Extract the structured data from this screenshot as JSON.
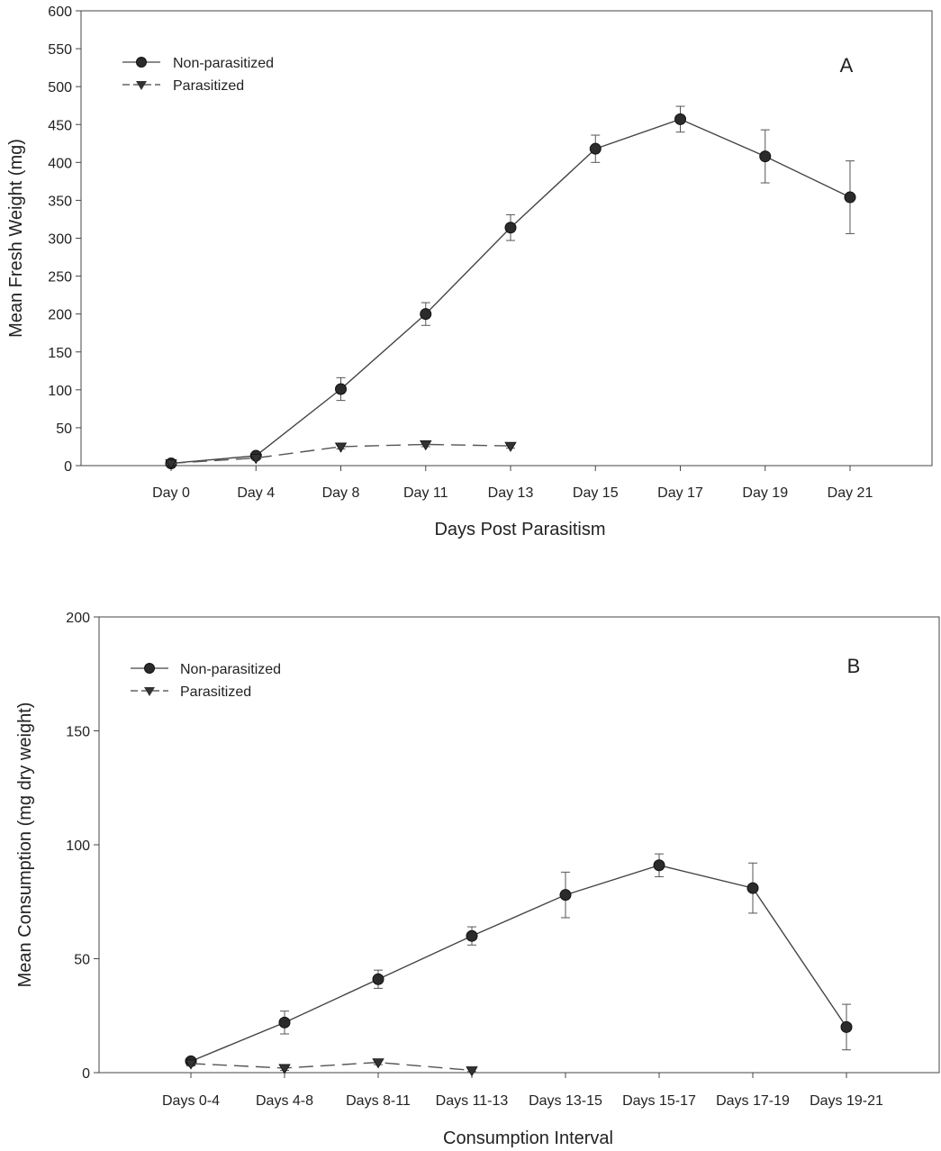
{
  "chart_data": [
    {
      "type": "line",
      "panel_label": "A",
      "xlabel": "Days Post Parasitism",
      "ylabel": "Mean Fresh Weight (mg)",
      "ylim": [
        0,
        600
      ],
      "yticks": [
        0,
        50,
        100,
        150,
        200,
        250,
        300,
        350,
        400,
        450,
        500,
        550,
        600
      ],
      "categories": [
        "Day 0",
        "Day 4",
        "Day 8",
        "Day 11",
        "Day 13",
        "Day 15",
        "Day 17",
        "Day 19",
        "Day 21"
      ],
      "legend_position": "top-left",
      "series": [
        {
          "name": "Non-parasitized",
          "marker": "circle",
          "line": "solid",
          "values": [
            3,
            13,
            101,
            200,
            314,
            418,
            457,
            408,
            354
          ],
          "errors": [
            2,
            3,
            15,
            15,
            17,
            18,
            17,
            35,
            48
          ]
        },
        {
          "name": "Parasitized",
          "marker": "triangle-down",
          "line": "dashed",
          "values": [
            3,
            10,
            25,
            28,
            26,
            null,
            null,
            null,
            null
          ],
          "errors": [
            1,
            2,
            3,
            3,
            3,
            null,
            null,
            null,
            null
          ]
        }
      ]
    },
    {
      "type": "line",
      "panel_label": "B",
      "xlabel": "Consumption Interval",
      "ylabel": "Mean Consumption (mg dry weight)",
      "ylim": [
        0,
        200
      ],
      "yticks": [
        0,
        50,
        100,
        150,
        200
      ],
      "categories": [
        "Days 0-4",
        "Days 4-8",
        "Days 8-11",
        "Days 11-13",
        "Days 13-15",
        "Days 15-17",
        "Days 17-19",
        "Days 19-21"
      ],
      "legend_position": "top-left",
      "series": [
        {
          "name": "Non-parasitized",
          "marker": "circle",
          "line": "solid",
          "values": [
            5,
            22,
            41,
            60,
            78,
            91,
            81,
            20
          ],
          "errors": [
            1,
            5,
            4,
            4,
            10,
            5,
            11,
            10
          ]
        },
        {
          "name": "Parasitized",
          "marker": "triangle-down",
          "line": "dashed",
          "values": [
            4,
            2,
            4.5,
            1,
            null,
            null,
            null,
            null
          ],
          "errors": [
            1,
            1,
            1,
            0.5,
            null,
            null,
            null,
            null
          ]
        }
      ]
    }
  ]
}
